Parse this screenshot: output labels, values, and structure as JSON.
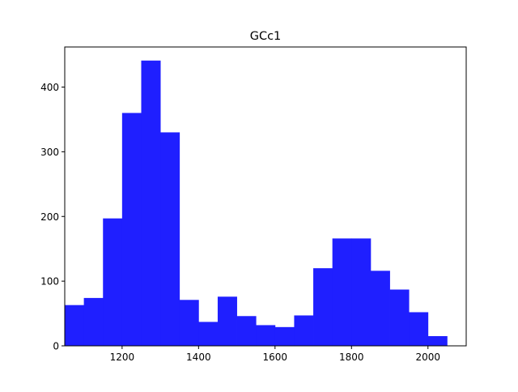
{
  "chart_data": {
    "type": "bar",
    "title": "GCc1",
    "xlabel": "",
    "ylabel": "",
    "xlim": [
      1050,
      2100
    ],
    "ylim": [
      0,
      462
    ],
    "xticks": [
      1200,
      1400,
      1600,
      1800,
      2000
    ],
    "yticks": [
      0,
      100,
      200,
      300,
      400
    ],
    "bin_width": 50,
    "bins": [
      {
        "start": 1050,
        "end": 1100,
        "count": 63
      },
      {
        "start": 1100,
        "end": 1150,
        "count": 74
      },
      {
        "start": 1150,
        "end": 1200,
        "count": 197
      },
      {
        "start": 1200,
        "end": 1250,
        "count": 360
      },
      {
        "start": 1250,
        "end": 1300,
        "count": 441
      },
      {
        "start": 1300,
        "end": 1350,
        "count": 330
      },
      {
        "start": 1350,
        "end": 1400,
        "count": 71
      },
      {
        "start": 1400,
        "end": 1450,
        "count": 37
      },
      {
        "start": 1450,
        "end": 1500,
        "count": 76
      },
      {
        "start": 1500,
        "end": 1550,
        "count": 46
      },
      {
        "start": 1550,
        "end": 1600,
        "count": 32
      },
      {
        "start": 1600,
        "end": 1650,
        "count": 29
      },
      {
        "start": 1650,
        "end": 1700,
        "count": 47
      },
      {
        "start": 1700,
        "end": 1750,
        "count": 120
      },
      {
        "start": 1750,
        "end": 1800,
        "count": 166
      },
      {
        "start": 1800,
        "end": 1850,
        "count": 166
      },
      {
        "start": 1850,
        "end": 1900,
        "count": 116
      },
      {
        "start": 1900,
        "end": 1950,
        "count": 87
      },
      {
        "start": 1950,
        "end": 2000,
        "count": 52
      },
      {
        "start": 2000,
        "end": 2050,
        "count": 15
      }
    ],
    "bar_color": "#1f1fff",
    "grid": false,
    "legend": "none"
  }
}
